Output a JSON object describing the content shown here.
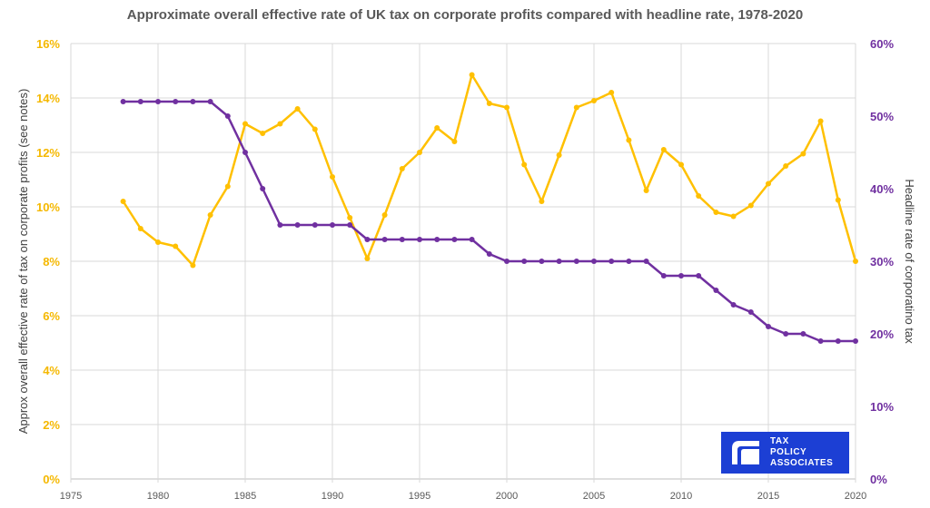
{
  "chart_data": {
    "type": "line",
    "title": "Approximate overall effective rate of UK tax on corporate profits compared with headline rate, 1978-2020",
    "ylabel": "Approx overall effective rate of tax on corporate profits (see notes)",
    "y2label": "Headline rate of corporatino tax",
    "xlim": [
      1975,
      2020
    ],
    "x_ticks": [
      "1975",
      "1980",
      "1985",
      "1990",
      "1995",
      "2000",
      "2005",
      "2010",
      "2015",
      "2020"
    ],
    "ylim": [
      0,
      16
    ],
    "y_ticks": [
      "0%",
      "2%",
      "4%",
      "6%",
      "8%",
      "10%",
      "12%",
      "14%",
      "16%"
    ],
    "y2lim": [
      0,
      60
    ],
    "y2_ticks": [
      "0%",
      "10%",
      "20%",
      "30%",
      "40%",
      "50%",
      "60%"
    ],
    "grid": true,
    "legend": "none",
    "x": [
      1978,
      1979,
      1980,
      1981,
      1982,
      1983,
      1984,
      1985,
      1986,
      1987,
      1988,
      1989,
      1990,
      1991,
      1992,
      1993,
      1994,
      1995,
      1996,
      1997,
      1998,
      1999,
      2000,
      2001,
      2002,
      2003,
      2004,
      2005,
      2006,
      2007,
      2008,
      2009,
      2010,
      2011,
      2012,
      2013,
      2014,
      2015,
      2016,
      2017,
      2018,
      2019,
      2020
    ],
    "series": [
      {
        "axis": "left",
        "color": "#ffc000",
        "values": [
          10.2,
          9.2,
          8.7,
          8.55,
          7.85,
          9.7,
          10.75,
          13.05,
          12.7,
          13.05,
          13.6,
          12.85,
          11.1,
          9.6,
          8.1,
          9.7,
          11.4,
          12.0,
          12.9,
          12.4,
          14.85,
          13.8,
          13.65,
          11.55,
          10.2,
          11.9,
          13.65,
          13.9,
          14.2,
          12.45,
          10.6,
          12.1,
          11.55,
          10.4,
          9.8,
          9.65,
          10.05,
          10.85,
          11.5,
          11.95,
          13.15,
          10.25,
          8.0
        ]
      },
      {
        "axis": "right",
        "color": "#7030a0",
        "values": [
          52,
          52,
          52,
          52,
          52,
          52,
          50,
          45,
          40,
          35,
          35,
          35,
          35,
          35,
          33,
          33,
          33,
          33,
          33,
          33,
          33,
          31,
          30,
          30,
          30,
          30,
          30,
          30,
          30,
          30,
          30,
          28,
          28,
          28,
          26,
          24,
          23,
          21,
          20,
          20,
          19,
          19,
          19
        ]
      }
    ]
  },
  "logo": {
    "lines": [
      "TAX",
      "POLICY",
      "ASSOCIATES"
    ],
    "bg_color": "#1c3fd4"
  }
}
